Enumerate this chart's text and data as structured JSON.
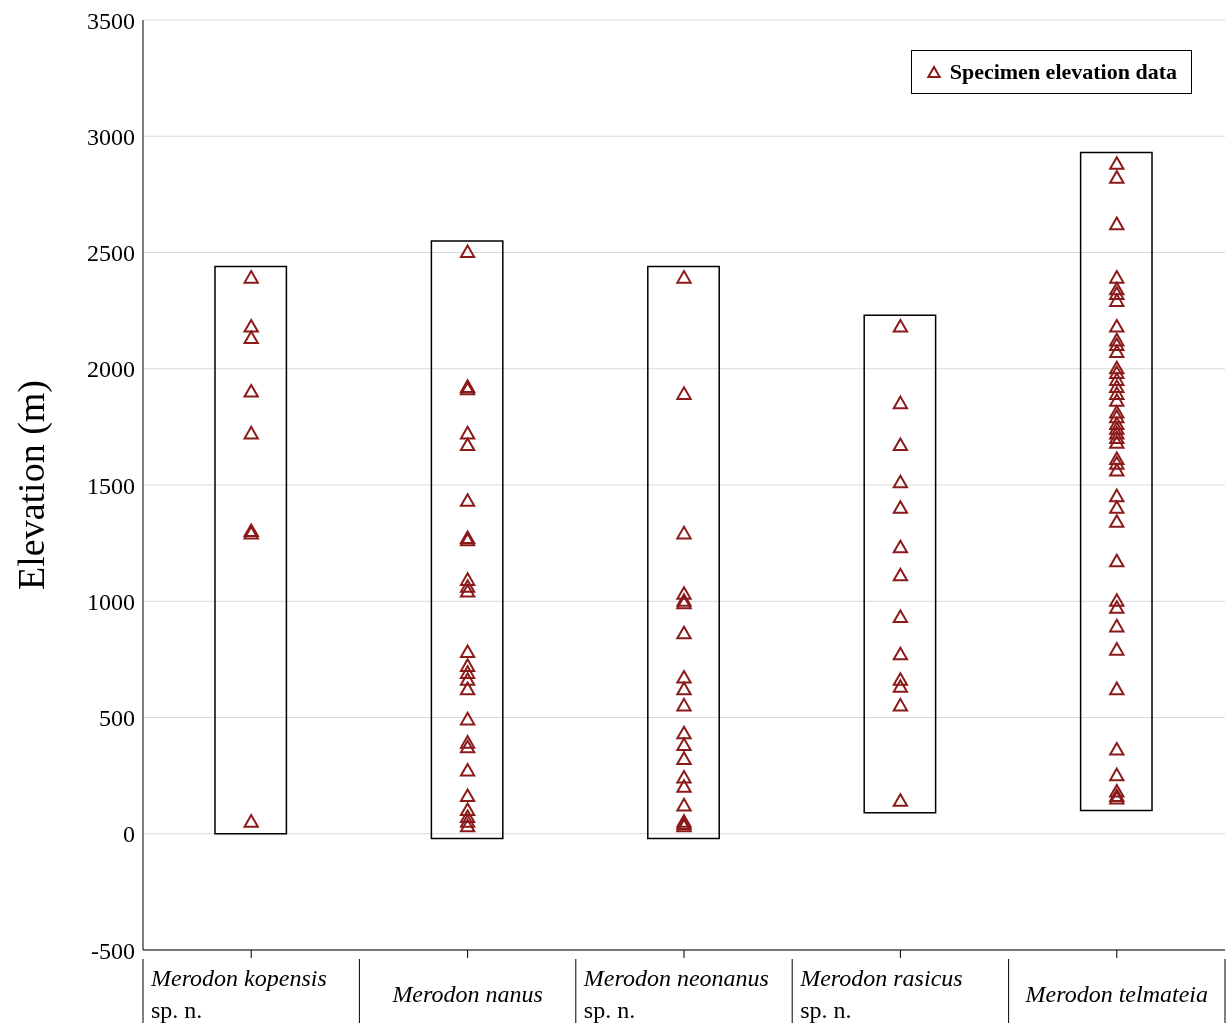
{
  "chart_data": {
    "type": "bar",
    "ylabel": "Elevation (m)",
    "categories": [
      "Merodon kopensis\nsp. n.",
      "Merodon nanus",
      "Merodon neonanus\nsp. n.",
      "Merodon rasicus\nsp. n.",
      "Merodon telmateia"
    ],
    "series": [
      {
        "color": "#000000",
        "values": [
          2440,
          2570,
          2460,
          2140,
          2830
        ],
        "base": [
          0,
          -20,
          -20,
          90,
          100
        ]
      },
      {
        "type": "scatter",
        "name": "Specimen elevation data",
        "color": "#8b1a1a",
        "x": [
          "Merodon kopensis\nsp. n.",
          "Merodon kopensis\nsp. n.",
          "Merodon kopensis\nsp. n.",
          "Merodon kopensis\nsp. n.",
          "Merodon kopensis\nsp. n.",
          "Merodon kopensis\nsp. n.",
          "Merodon kopensis\nsp. n.",
          "Merodon kopensis\nsp. n.",
          "Merodon nanus",
          "Merodon nanus",
          "Merodon nanus",
          "Merodon nanus",
          "Merodon nanus",
          "Merodon nanus",
          "Merodon nanus",
          "Merodon nanus",
          "Merodon nanus",
          "Merodon nanus",
          "Merodon nanus",
          "Merodon nanus",
          "Merodon nanus",
          "Merodon nanus",
          "Merodon nanus",
          "Merodon nanus",
          "Merodon nanus",
          "Merodon nanus",
          "Merodon nanus",
          "Merodon nanus",
          "Merodon nanus",
          "Merodon nanus",
          "Merodon nanus",
          "Merodon nanus",
          "Merodon nanus",
          "Merodon neonanus\nsp. n.",
          "Merodon neonanus\nsp. n.",
          "Merodon neonanus\nsp. n.",
          "Merodon neonanus\nsp. n.",
          "Merodon neonanus\nsp. n.",
          "Merodon neonanus\nsp. n.",
          "Merodon neonanus\nsp. n.",
          "Merodon neonanus\nsp. n.",
          "Merodon neonanus\nsp. n.",
          "Merodon neonanus\nsp. n.",
          "Merodon neonanus\nsp. n.",
          "Merodon neonanus\nsp. n.",
          "Merodon neonanus\nsp. n.",
          "Merodon neonanus\nsp. n.",
          "Merodon neonanus\nsp. n.",
          "Merodon neonanus\nsp. n.",
          "Merodon neonanus\nsp. n.",
          "Merodon neonanus\nsp. n.",
          "Merodon neonanus\nsp. n.",
          "Merodon rasicus\nsp. n.",
          "Merodon rasicus\nsp. n.",
          "Merodon rasicus\nsp. n.",
          "Merodon rasicus\nsp. n.",
          "Merodon rasicus\nsp. n.",
          "Merodon rasicus\nsp. n.",
          "Merodon rasicus\nsp. n.",
          "Merodon rasicus\nsp. n.",
          "Merodon rasicus\nsp. n.",
          "Merodon rasicus\nsp. n.",
          "Merodon rasicus\nsp. n.",
          "Merodon rasicus\nsp. n.",
          "Merodon rasicus\nsp. n.",
          "Merodon telmateia",
          "Merodon telmateia",
          "Merodon telmateia",
          "Merodon telmateia",
          "Merodon telmateia",
          "Merodon telmateia",
          "Merodon telmateia",
          "Merodon telmateia",
          "Merodon telmateia",
          "Merodon telmateia",
          "Merodon telmateia",
          "Merodon telmateia",
          "Merodon telmateia",
          "Merodon telmateia",
          "Merodon telmateia",
          "Merodon telmateia",
          "Merodon telmateia",
          "Merodon telmateia",
          "Merodon telmateia",
          "Merodon telmateia",
          "Merodon telmateia",
          "Merodon telmateia",
          "Merodon telmateia",
          "Merodon telmateia",
          "Merodon telmateia",
          "Merodon telmateia",
          "Merodon telmateia",
          "Merodon telmateia",
          "Merodon telmateia",
          "Merodon telmateia",
          "Merodon telmateia",
          "Merodon telmateia",
          "Merodon telmateia",
          "Merodon telmateia",
          "Merodon telmateia",
          "Merodon telmateia",
          "Merodon telmateia",
          "Merodon telmateia",
          "Merodon telmateia",
          "Merodon telmateia",
          "Merodon telmateia"
        ],
        "values": [
          2390,
          2180,
          2130,
          1900,
          1720,
          1300,
          1290,
          50,
          2500,
          1920,
          1910,
          1720,
          1670,
          1430,
          1270,
          1260,
          1090,
          1060,
          1040,
          780,
          720,
          690,
          660,
          620,
          490,
          390,
          370,
          270,
          160,
          100,
          70,
          50,
          30,
          2390,
          1890,
          1290,
          1030,
          1000,
          990,
          860,
          670,
          620,
          550,
          430,
          380,
          320,
          240,
          200,
          120,
          50,
          40,
          30,
          2180,
          1850,
          1670,
          1510,
          1400,
          1230,
          1110,
          930,
          770,
          660,
          630,
          550,
          140,
          2880,
          2820,
          2620,
          2390,
          2340,
          2320,
          2290,
          2180,
          2120,
          2100,
          2070,
          2000,
          1980,
          1950,
          1920,
          1890,
          1860,
          1810,
          1790,
          1760,
          1740,
          1720,
          1700,
          1680,
          1610,
          1590,
          1560,
          1450,
          1400,
          1340,
          1170,
          1000,
          970,
          890,
          790,
          620,
          360,
          250,
          180,
          160,
          150
        ]
      }
    ],
    "ylim": [
      -500,
      3500
    ],
    "yticks": [
      -500,
      0,
      500,
      1000,
      1500,
      2000,
      2500,
      3000,
      3500
    ],
    "grid": "y",
    "legend": "top right",
    "marker": "triangle"
  }
}
